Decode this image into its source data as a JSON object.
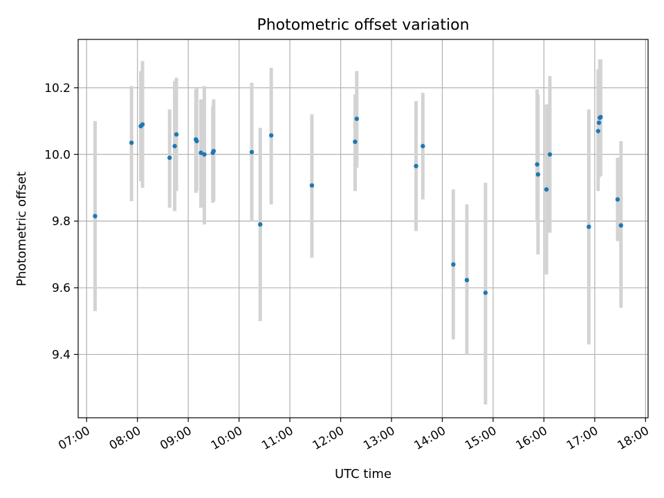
{
  "chart_data": {
    "type": "scatter",
    "title": "Photometric offset variation",
    "xlabel": "UTC time",
    "ylabel": "Photometric offset",
    "x_ticks": [
      "07:00",
      "08:00",
      "09:00",
      "10:00",
      "11:00",
      "12:00",
      "13:00",
      "14:00",
      "15:00",
      "16:00",
      "17:00",
      "18:00"
    ],
    "y_ticks": [
      "9.4",
      "9.6",
      "9.8",
      "10.0",
      "10.2"
    ],
    "xlim": [
      "06:50",
      "18:03"
    ],
    "ylim": [
      9.21,
      10.345
    ],
    "grid": true,
    "colors": {
      "points": "#1f77b4",
      "errorbars": "#d3d3d3"
    },
    "series": [
      {
        "points": [
          {
            "x": "07:10",
            "y": 9.815,
            "ylow": 9.53,
            "yhigh": 10.1
          },
          {
            "x": "07:53",
            "y": 10.035,
            "ylow": 9.86,
            "yhigh": 10.205
          },
          {
            "x": "08:04",
            "y": 10.085,
            "ylow": 9.92,
            "yhigh": 10.25
          },
          {
            "x": "08:06",
            "y": 10.09,
            "ylow": 9.9,
            "yhigh": 10.28
          },
          {
            "x": "08:38",
            "y": 9.99,
            "ylow": 9.84,
            "yhigh": 10.135
          },
          {
            "x": "08:44",
            "y": 10.025,
            "ylow": 9.83,
            "yhigh": 10.22
          },
          {
            "x": "08:46",
            "y": 10.06,
            "ylow": 9.89,
            "yhigh": 10.23
          },
          {
            "x": "09:09",
            "y": 10.045,
            "ylow": 9.885,
            "yhigh": 10.195
          },
          {
            "x": "09:10",
            "y": 10.04,
            "ylow": 9.89,
            "yhigh": 10.2
          },
          {
            "x": "09:15",
            "y": 10.005,
            "ylow": 9.84,
            "yhigh": 10.165
          },
          {
            "x": "09:19",
            "y": 10.0,
            "ylow": 9.79,
            "yhigh": 10.205
          },
          {
            "x": "09:29",
            "y": 10.005,
            "ylow": 9.855,
            "yhigh": 10.145
          },
          {
            "x": "09:30",
            "y": 10.01,
            "ylow": 9.86,
            "yhigh": 10.165
          },
          {
            "x": "10:15",
            "y": 10.007,
            "ylow": 9.8,
            "yhigh": 10.215
          },
          {
            "x": "10:25",
            "y": 9.79,
            "ylow": 9.5,
            "yhigh": 10.08
          },
          {
            "x": "10:38",
            "y": 10.057,
            "ylow": 9.85,
            "yhigh": 10.26
          },
          {
            "x": "11:26",
            "y": 9.907,
            "ylow": 9.69,
            "yhigh": 10.12
          },
          {
            "x": "12:17",
            "y": 10.038,
            "ylow": 9.89,
            "yhigh": 10.18
          },
          {
            "x": "12:19",
            "y": 10.107,
            "ylow": 9.96,
            "yhigh": 10.25
          },
          {
            "x": "13:29",
            "y": 9.965,
            "ylow": 9.77,
            "yhigh": 10.16
          },
          {
            "x": "13:37",
            "y": 10.025,
            "ylow": 9.865,
            "yhigh": 10.185
          },
          {
            "x": "14:13",
            "y": 9.67,
            "ylow": 9.445,
            "yhigh": 9.895
          },
          {
            "x": "14:29",
            "y": 9.623,
            "ylow": 9.4,
            "yhigh": 9.85
          },
          {
            "x": "14:51",
            "y": 9.585,
            "ylow": 9.25,
            "yhigh": 9.915
          },
          {
            "x": "15:52",
            "y": 9.97,
            "ylow": 9.8,
            "yhigh": 10.195
          },
          {
            "x": "15:53",
            "y": 9.94,
            "ylow": 9.7,
            "yhigh": 10.18
          },
          {
            "x": "16:03",
            "y": 9.895,
            "ylow": 9.64,
            "yhigh": 10.15
          },
          {
            "x": "16:07",
            "y": 10.0,
            "ylow": 9.765,
            "yhigh": 10.235
          },
          {
            "x": "16:53",
            "y": 9.783,
            "ylow": 9.43,
            "yhigh": 10.135
          },
          {
            "x": "17:04",
            "y": 10.07,
            "ylow": 9.89,
            "yhigh": 10.255
          },
          {
            "x": "17:05",
            "y": 10.095,
            "ylow": 9.93,
            "yhigh": 10.255
          },
          {
            "x": "17:06",
            "y": 10.11,
            "ylow": 9.935,
            "yhigh": 10.285
          },
          {
            "x": "17:07",
            "y": 10.112,
            "ylow": 9.935,
            "yhigh": 10.285
          },
          {
            "x": "17:27",
            "y": 9.865,
            "ylow": 9.74,
            "yhigh": 9.99
          },
          {
            "x": "17:31",
            "y": 9.787,
            "ylow": 9.54,
            "yhigh": 10.04
          }
        ]
      }
    ]
  }
}
